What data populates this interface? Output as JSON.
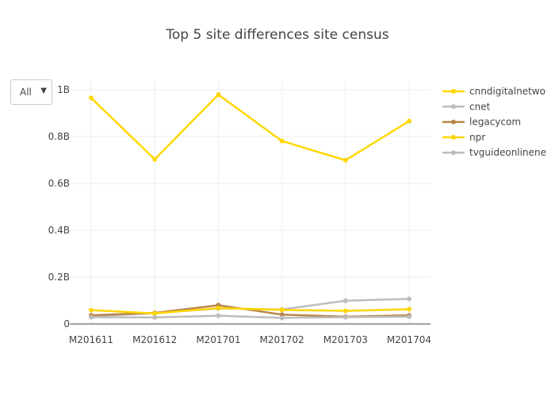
{
  "chart_data": {
    "type": "line",
    "title": "Top 5 site differences site census",
    "categories": [
      "M201611",
      "M201612",
      "M201701",
      "M201702",
      "M201703",
      "M201704"
    ],
    "ylim": [
      0,
      1000000000
    ],
    "yticks": [
      0,
      200000000,
      400000000,
      600000000,
      800000000,
      1000000000
    ],
    "ytick_labels": [
      "0",
      "0.2B",
      "0.4B",
      "0.6B",
      "0.8B",
      "1B"
    ],
    "grid": true,
    "legend_position": "right",
    "series": [
      {
        "name": "cnndigitalnetwo",
        "color": "#ffd700",
        "values": [
          965000000,
          703000000,
          979000000,
          781000000,
          699000000,
          866000000
        ]
      },
      {
        "name": "cnet",
        "color": "#bdbdbd",
        "values": [
          33000000,
          46000000,
          66000000,
          62000000,
          99000000,
          107000000
        ]
      },
      {
        "name": "legacycom",
        "color": "#b8864a",
        "values": [
          37000000,
          47000000,
          80000000,
          40000000,
          31000000,
          37000000
        ]
      },
      {
        "name": "npr",
        "color": "#ffd700",
        "values": [
          59000000,
          45000000,
          68000000,
          60000000,
          56000000,
          63000000
        ]
      },
      {
        "name": "tvguideonlinene",
        "color": "#bdbdbd",
        "values": [
          29000000,
          28000000,
          35000000,
          26000000,
          29000000,
          31000000
        ]
      }
    ]
  },
  "dropdown": {
    "label": "All",
    "arrow": "▼"
  }
}
